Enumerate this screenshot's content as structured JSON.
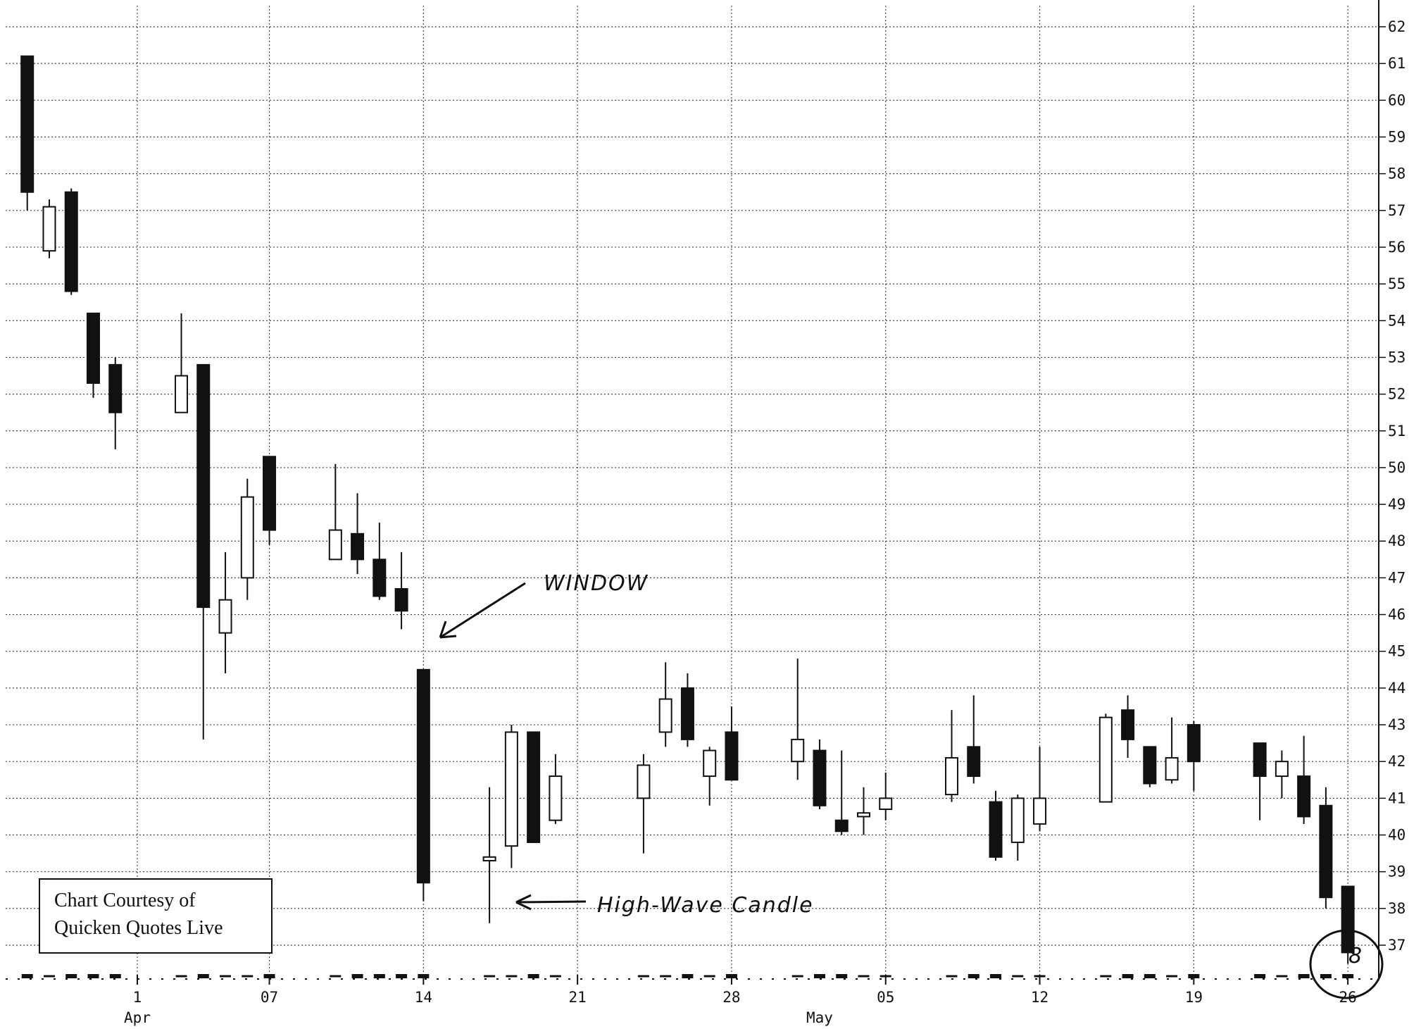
{
  "chart_data": {
    "type": "candlestick",
    "title": "",
    "xlabel": "",
    "ylabel": "",
    "ylim": [
      36.4,
      62.4
    ],
    "y_ticks": [
      37,
      38,
      39,
      40,
      41,
      42,
      43,
      44,
      45,
      46,
      47,
      48,
      49,
      50,
      51,
      52,
      53,
      54,
      55,
      56,
      57,
      58,
      59,
      60,
      61,
      62
    ],
    "y_axis_position": "right",
    "grid": "dotted",
    "x_ticks": [
      {
        "label": "1",
        "date": "Apr 1"
      },
      {
        "label": "07",
        "date": "Apr 7"
      },
      {
        "label": "14",
        "date": "Apr 14"
      },
      {
        "label": "21",
        "date": "Apr 21"
      },
      {
        "label": "28",
        "date": "Apr 28"
      },
      {
        "label": "05",
        "date": "May 5"
      },
      {
        "label": "12",
        "date": "May 12"
      },
      {
        "label": "19",
        "date": "May 19"
      },
      {
        "label": "26",
        "date": "May 26"
      }
    ],
    "month_labels": [
      {
        "label": "Apr",
        "date": "Apr 1"
      },
      {
        "label": "May",
        "date": "May 2"
      }
    ],
    "candles": [
      {
        "date": "Mar 27",
        "open": 61.2,
        "high": 61.2,
        "low": 57.0,
        "close": 57.5
      },
      {
        "date": "Mar 28",
        "open": 55.9,
        "high": 57.3,
        "low": 55.7,
        "close": 57.1
      },
      {
        "date": "Mar 29",
        "open": 57.5,
        "high": 57.6,
        "low": 54.7,
        "close": 54.8
      },
      {
        "date": "Mar 30",
        "open": 54.2,
        "high": 54.2,
        "low": 51.9,
        "close": 52.3
      },
      {
        "date": "Mar 31",
        "open": 52.8,
        "high": 53.0,
        "low": 50.5,
        "close": 51.5
      },
      {
        "date": "Apr 3",
        "open": 51.5,
        "high": 54.2,
        "low": 51.5,
        "close": 52.5
      },
      {
        "date": "Apr 4",
        "open": 52.8,
        "high": 52.8,
        "low": 42.6,
        "close": 46.2
      },
      {
        "date": "Apr 5",
        "open": 45.5,
        "high": 47.7,
        "low": 44.4,
        "close": 46.4
      },
      {
        "date": "Apr 6",
        "open": 47.0,
        "high": 49.7,
        "low": 46.4,
        "close": 49.2
      },
      {
        "date": "Apr 7",
        "open": 50.3,
        "high": 50.3,
        "low": 47.9,
        "close": 48.3
      },
      {
        "date": "Apr 10",
        "open": 47.5,
        "high": 50.1,
        "low": 47.5,
        "close": 48.3
      },
      {
        "date": "Apr 11",
        "open": 48.2,
        "high": 49.3,
        "low": 47.1,
        "close": 47.5
      },
      {
        "date": "Apr 12",
        "open": 47.5,
        "high": 48.5,
        "low": 46.4,
        "close": 46.5
      },
      {
        "date": "Apr 13",
        "open": 46.7,
        "high": 47.7,
        "low": 45.6,
        "close": 46.1
      },
      {
        "date": "Apr 14",
        "open": 44.5,
        "high": 44.5,
        "low": 38.2,
        "close": 38.7
      },
      {
        "date": "Apr 17",
        "open": 39.3,
        "high": 41.3,
        "low": 37.6,
        "close": 39.4
      },
      {
        "date": "Apr 18",
        "open": 39.7,
        "high": 43.0,
        "low": 39.1,
        "close": 42.8
      },
      {
        "date": "Apr 19",
        "open": 42.8,
        "high": 42.8,
        "low": 39.8,
        "close": 39.8
      },
      {
        "date": "Apr 20",
        "open": 40.4,
        "high": 42.2,
        "low": 40.3,
        "close": 41.6
      },
      {
        "date": "Apr 24",
        "open": 41.0,
        "high": 42.2,
        "low": 39.5,
        "close": 41.9
      },
      {
        "date": "Apr 25",
        "open": 42.8,
        "high": 44.7,
        "low": 42.4,
        "close": 43.7
      },
      {
        "date": "Apr 26",
        "open": 44.0,
        "high": 44.4,
        "low": 42.4,
        "close": 42.6
      },
      {
        "date": "Apr 27",
        "open": 41.6,
        "high": 42.4,
        "low": 40.8,
        "close": 42.3
      },
      {
        "date": "Apr 28",
        "open": 42.8,
        "high": 43.5,
        "low": 41.5,
        "close": 41.5
      },
      {
        "date": "May 1",
        "open": 42.0,
        "high": 44.8,
        "low": 41.5,
        "close": 42.6
      },
      {
        "date": "May 2",
        "open": 42.3,
        "high": 42.6,
        "low": 40.7,
        "close": 40.8
      },
      {
        "date": "May 3",
        "open": 40.4,
        "high": 42.3,
        "low": 40.0,
        "close": 40.1
      },
      {
        "date": "May 4",
        "open": 40.5,
        "high": 41.3,
        "low": 40.0,
        "close": 40.6
      },
      {
        "date": "May 5",
        "open": 40.7,
        "high": 41.7,
        "low": 40.4,
        "close": 41.0
      },
      {
        "date": "May 8",
        "open": 41.1,
        "high": 43.4,
        "low": 40.9,
        "close": 42.1
      },
      {
        "date": "May 9",
        "open": 42.4,
        "high": 43.8,
        "low": 41.4,
        "close": 41.6
      },
      {
        "date": "May 10",
        "open": 40.9,
        "high": 41.2,
        "low": 39.3,
        "close": 39.4
      },
      {
        "date": "May 11",
        "open": 39.8,
        "high": 41.1,
        "low": 39.3,
        "close": 41.0
      },
      {
        "date": "May 12",
        "open": 40.3,
        "high": 42.4,
        "low": 40.1,
        "close": 41.0
      },
      {
        "date": "May 15",
        "open": 40.9,
        "high": 43.3,
        "low": 40.9,
        "close": 43.2
      },
      {
        "date": "May 16",
        "open": 43.4,
        "high": 43.8,
        "low": 42.1,
        "close": 42.6
      },
      {
        "date": "May 17",
        "open": 42.4,
        "high": 42.4,
        "low": 41.3,
        "close": 41.4
      },
      {
        "date": "May 18",
        "open": 41.5,
        "high": 43.2,
        "low": 41.4,
        "close": 42.1
      },
      {
        "date": "May 19",
        "open": 43.0,
        "high": 43.1,
        "low": 41.2,
        "close": 42.0
      },
      {
        "date": "May 22",
        "open": 42.5,
        "high": 42.5,
        "low": 40.4,
        "close": 41.6
      },
      {
        "date": "May 23",
        "open": 41.6,
        "high": 42.3,
        "low": 41.0,
        "close": 42.0
      },
      {
        "date": "May 24",
        "open": 41.6,
        "high": 42.7,
        "low": 40.3,
        "close": 40.5
      },
      {
        "date": "May 25",
        "open": 40.8,
        "high": 41.3,
        "low": 38.0,
        "close": 38.3
      },
      {
        "date": "May 26",
        "open": 38.6,
        "high": 38.6,
        "low": 36.5,
        "close": 36.8
      }
    ],
    "volume_dash_markers": true,
    "annotations": [
      {
        "text": "WINDOW",
        "kind": "handwritten-arrow-label",
        "points_to": "Apr 14"
      },
      {
        "text": "High-Wave Candle",
        "kind": "handwritten-arrow-label",
        "points_to": "Apr 17"
      },
      {
        "text": "8",
        "kind": "circled-mark",
        "points_to": "May 26"
      }
    ],
    "credit": [
      "Chart Courtesy of",
      "Quicken Quotes Live"
    ]
  },
  "colors": {
    "candle_body_bearish": "#111111",
    "candle_body_bullish": "#ffffff",
    "grid": "#444444",
    "ink": "#111111"
  }
}
